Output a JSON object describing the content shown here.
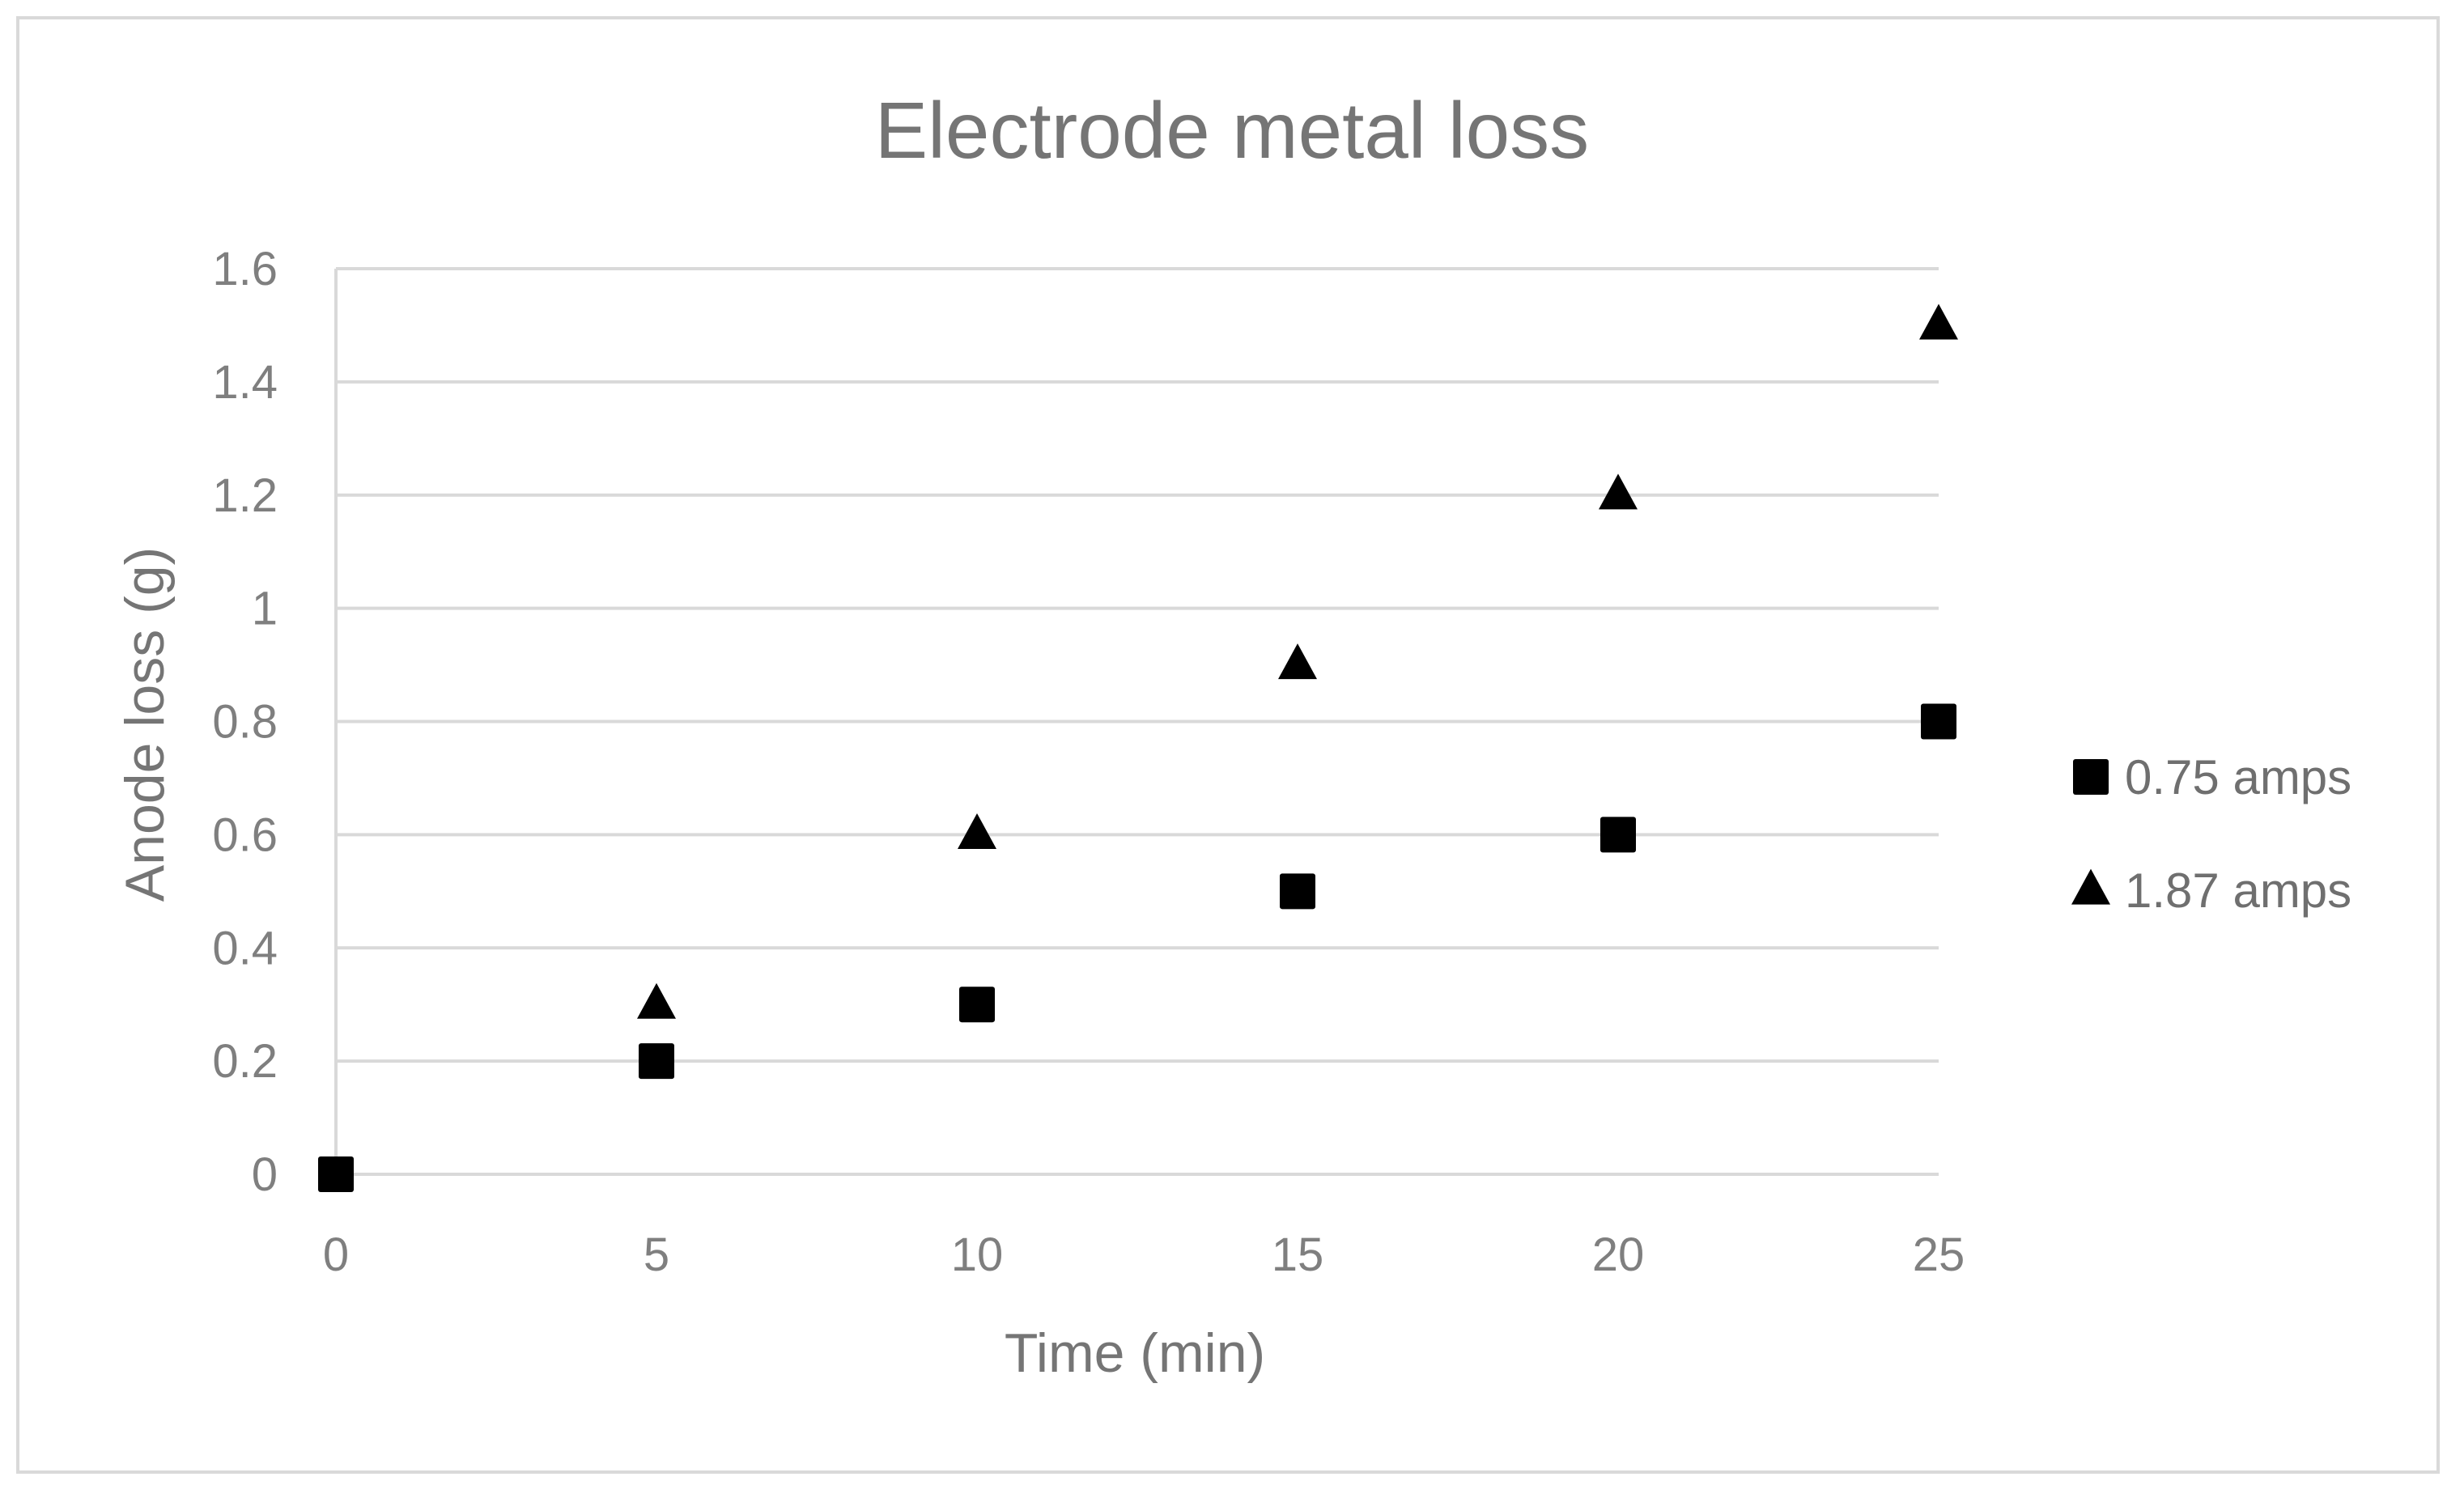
{
  "chart_data": {
    "type": "scatter",
    "title": "Electrode metal loss",
    "xlabel": "Time (min)",
    "ylabel": "Anode loss (g)",
    "xlim": [
      0,
      25
    ],
    "ylim": [
      0,
      1.6
    ],
    "x_ticks": [
      "0",
      "5",
      "10",
      "15",
      "20",
      "25"
    ],
    "y_ticks": [
      "0",
      "0.2",
      "0.4",
      "0.6",
      "0.8",
      "1",
      "1.2",
      "1.4",
      "1.6"
    ],
    "grid": true,
    "legend_position": "right",
    "series": [
      {
        "name": "0.75 amps",
        "marker": "square",
        "color": "#000000",
        "x": [
          0,
          5,
          10,
          15,
          20,
          25
        ],
        "y": [
          0,
          0.2,
          0.3,
          0.5,
          0.6,
          0.8
        ]
      },
      {
        "name": "1.87 amps",
        "marker": "triangle",
        "color": "#000000",
        "x": [
          5,
          10,
          15,
          20,
          25
        ],
        "y": [
          0.3,
          0.6,
          0.9,
          1.2,
          1.5
        ]
      }
    ]
  }
}
